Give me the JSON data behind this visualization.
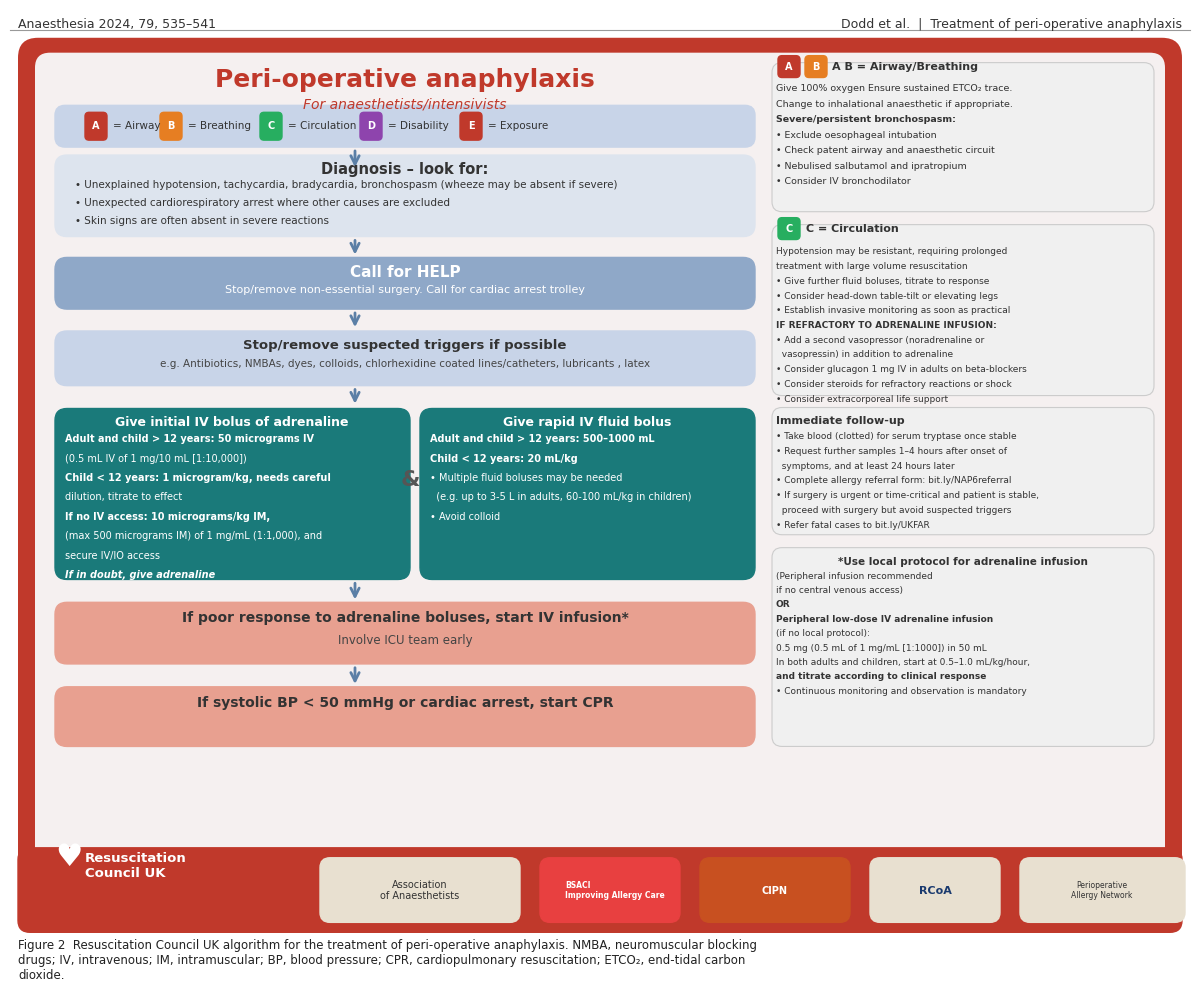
{
  "title": "Peri-operative anaphylaxis",
  "subtitle": "For anaesthetists/intensivists",
  "header_left": "Anaesthesia 2024, 79, 535–541",
  "header_right": "Dodd et al.  |  Treatment of peri-operative anaphylaxis",
  "figure_caption": "Figure 2  Resuscitation Council UK algorithm for the treatment of peri-operative anaphylaxis. NMBA, neuromuscular blocking\ndrugs; IV, intravenous; IM, intramuscular; BP, blood pressure; CPR, cardiopulmonary resuscitation; ETCO₂, end-tidal carbon\ndioxide.",
  "bg_outer": "#c0392b",
  "bg_inner": "#f5f0f0",
  "color_red": "#c0392b",
  "color_dark_red": "#a93226",
  "color_teal": "#1a7a7a",
  "color_blue_grey": "#8fa8c8",
  "color_light_blue": "#b8c9e0",
  "color_salmon": "#e8a090",
  "color_light_salmon": "#f0c0b0",
  "color_white": "#ffffff",
  "color_dark_blue": "#2c4a6e",
  "color_label_a": "#c0392b",
  "color_label_b": "#e67e22",
  "color_label_c": "#27ae60",
  "color_label_d": "#8e44ad",
  "color_label_e": "#c0392b",
  "color_arrow": "#5b7fa6",
  "legend_text": "A = Airway   B = Breathing   C = Circulation   D = Disability   E = Exposure",
  "diagnosis_title": "Diagnosis – look for:",
  "diagnosis_bullets": [
    "Unexplained hypotension, tachycardia, bradycardia, bronchospasm (wheeze may be absent if severe)",
    "Unexpected cardiorespiratory arrest where other causes are excluded",
    "Skin signs are often absent in severe reactions"
  ],
  "help_title": "Call for HELP",
  "help_subtitle": "Stop/remove non-essential surgery. Call for cardiac arrest trolley",
  "triggers_title": "Stop/remove suspected triggers if possible",
  "triggers_subtitle": "e.g. Antibiotics, NMBAs, dyes, colloids, chlorhexidine coated lines/catheters, lubricants , latex",
  "adrenaline_title": "Give initial IV bolus of adrenaline",
  "adrenaline_text": "Adult and child > 12 years: 50 micrograms IV\n(0.5 mL IV of 1 mg/10 mL [1:10,000])\nChild < 12 years: 1 microgram/kg, needs careful\ndilution, titrate to effect\nIf no IV access: 10 micrograms/kg IM,\n(max 500 micrograms IM) of 1 mg/mL (1:1,000), and\nsecure IV/IO access\nIf in doubt, give adrenaline",
  "fluid_title": "Give rapid IV fluid bolus",
  "fluid_text": "Adult and child > 12 years: 500–1000 mL\nChild < 12 years: 20 mL/kg\n• Multiple fluid boluses may be needed\n  (e.g. up to 3-5 L in adults, 60-100 mL/kg in children)\n• Avoid colloid",
  "infusion_title": "If poor response to adrenaline boluses, start IV infusion*",
  "infusion_subtitle": "Involve ICU team early",
  "cpr_title": "If systolic BP < 50 mmHg or cardiac arrest, start CPR",
  "ab_title": "A B = Airway/Breathing",
  "ab_text": "Give 100% oxygen Ensure sustained ETCO₂ trace.\nChange to inhalational anaesthetic if appropriate.\nSevere/persistent bronchospasm:\n• Exclude oesophageal intubation\n• Check patent airway and anaesthetic circuit\n• Nebulised salbutamol and ipratropium\n• Consider IV bronchodilator",
  "c_title": "C = Circulation",
  "c_text": "Hypotension may be resistant, requiring prolonged\ntreatment with large volume resuscitation\n• Give further fluid boluses, titrate to response\n• Consider head-down table-tilt or elevating legs\n• Establish invasive monitoring as soon as practical\nIF REFRACTORY TO ADRENALINE INFUSION:\n• Add a second vasopressor (noradrenaline or\n  vasopressin) in addition to adrenaline\n• Consider glucagon 1 mg IV in adults on beta-blockers\n• Consider steroids for refractory reactions or shock\n• Consider extracorporeal life support",
  "followup_title": "Immediate follow-up",
  "followup_text": "• Take blood (clotted) for serum tryptase once stable\n• Request further samples 1–4 hours after onset of\n  symptoms, and at least 24 hours later\n• Complete allergy referral form: bit.ly/NAP6referral\n• If surgery is urgent or time-critical and patient is stable,\n  proceed with surgery but avoid suspected triggers\n• Refer fatal cases to bit.ly/UKFAR",
  "infusion_note_title": "*Use local protocol for adrenaline infusion",
  "infusion_note_text": "(Peripheral infusion recommended\nif no central venous access)\nOR\nPeripheral low-dose IV adrenaline infusion\n(if no local protocol):\n0.5 mg (0.5 mL of 1 mg/mL [1:1000]) in 50 mL\nIn both adults and children, start at 0.5–1.0 mL/kg/hour,\nand titrate according to clinical response\n• Continuous monitoring and observation is mandatory"
}
